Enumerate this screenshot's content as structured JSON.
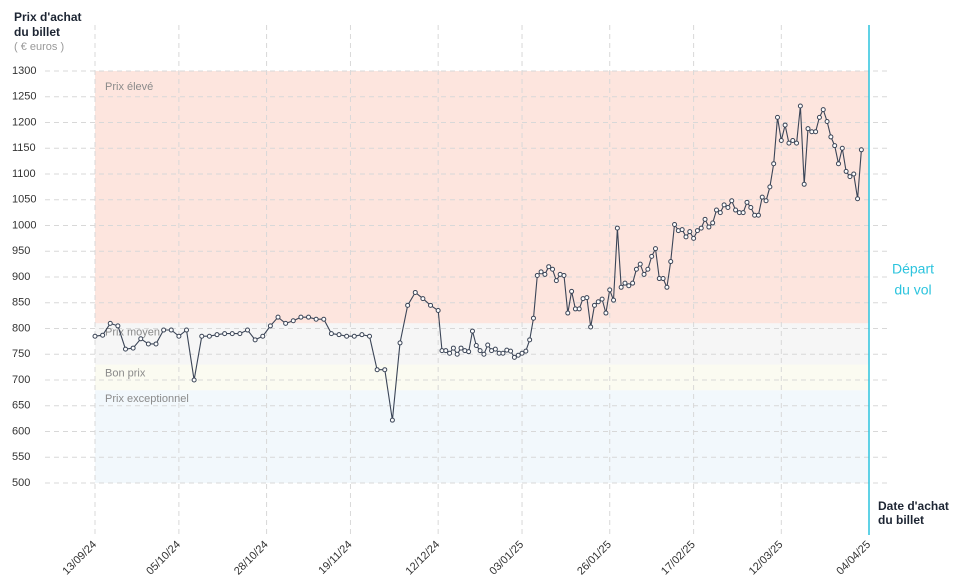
{
  "chart_data": {
    "type": "line",
    "y_axis_title": [
      "Prix d'achat",
      "du billet"
    ],
    "y_axis_unit": "( € euros )",
    "x_axis_title": [
      "Date d'achat",
      "du billet"
    ],
    "departure": "04/04/25",
    "departure_label": [
      "Départ",
      "du vol"
    ],
    "departure_color": "#2cc4de",
    "color": "#3b4557",
    "grid": true,
    "ylim": [
      500,
      1300
    ],
    "yticks": [
      500,
      550,
      600,
      650,
      700,
      750,
      800,
      850,
      900,
      950,
      1000,
      1050,
      1100,
      1150,
      1200,
      1250,
      1300
    ],
    "xlim": [
      "13/09/24",
      "04/04/25"
    ],
    "xticks": [
      "13/09/24",
      "05/10/24",
      "28/10/24",
      "19/11/24",
      "12/12/24",
      "03/01/25",
      "26/01/25",
      "17/02/25",
      "12/03/25",
      "04/04/25"
    ],
    "zones": [
      {
        "label": "Prix élevé",
        "from": 810,
        "to": 1300,
        "color": "#fde5de"
      },
      {
        "label": "Prix moyen",
        "from": 730,
        "to": 810,
        "color": "#f6f6f6"
      },
      {
        "label": "Bon prix",
        "from": 680,
        "to": 730,
        "color": "#fbfbf1"
      },
      {
        "label": "Prix exceptionnel",
        "from": 500,
        "to": 680,
        "color": "#f2f8fc"
      }
    ],
    "x": [
      "13/09/24",
      "15/09/24",
      "17/09/24",
      "19/09/24",
      "21/09/24",
      "23/09/24",
      "25/09/24",
      "27/09/24",
      "29/09/24",
      "01/10/24",
      "03/10/24",
      "05/10/24",
      "07/10/24",
      "09/10/24",
      "11/10/24",
      "13/10/24",
      "15/10/24",
      "17/10/24",
      "19/10/24",
      "21/10/24",
      "23/10/24",
      "25/10/24",
      "27/10/24",
      "29/10/24",
      "31/10/24",
      "02/11/24",
      "04/11/24",
      "06/11/24",
      "08/11/24",
      "10/11/24",
      "12/11/24",
      "14/11/24",
      "16/11/24",
      "18/11/24",
      "20/11/24",
      "22/11/24",
      "24/11/24",
      "26/11/24",
      "28/11/24",
      "30/11/24",
      "02/12/24",
      "04/12/24",
      "06/12/24",
      "08/12/24",
      "10/12/24",
      "12/12/24",
      "13/12/24",
      "14/12/24",
      "15/12/24",
      "16/12/24",
      "17/12/24",
      "18/12/24",
      "19/12/24",
      "20/12/24",
      "21/12/24",
      "22/12/24",
      "23/12/24",
      "24/12/24",
      "25/12/24",
      "26/12/24",
      "27/12/24",
      "28/12/24",
      "29/12/24",
      "30/12/24",
      "31/12/24",
      "01/01/25",
      "02/01/25",
      "03/01/25",
      "04/01/25",
      "05/01/25",
      "06/01/25",
      "07/01/25",
      "08/01/25",
      "09/01/25",
      "10/01/25",
      "11/01/25",
      "12/01/25",
      "13/01/25",
      "14/01/25",
      "15/01/25",
      "16/01/25",
      "17/01/25",
      "18/01/25",
      "19/01/25",
      "20/01/25",
      "21/01/25",
      "22/01/25",
      "23/01/25",
      "24/01/25",
      "25/01/25",
      "26/01/25",
      "27/01/25",
      "28/01/25",
      "29/01/25",
      "30/01/25",
      "31/01/25",
      "01/02/25",
      "02/02/25",
      "03/02/25",
      "04/02/25",
      "05/02/25",
      "06/02/25",
      "07/02/25",
      "08/02/25",
      "09/02/25",
      "10/02/25",
      "11/02/25",
      "12/02/25",
      "13/02/25",
      "14/02/25",
      "15/02/25",
      "16/02/25",
      "17/02/25",
      "18/02/25",
      "19/02/25",
      "20/02/25",
      "21/02/25",
      "22/02/25",
      "23/02/25",
      "24/02/25",
      "25/02/25",
      "26/02/25",
      "27/02/25",
      "28/02/25",
      "01/03/25",
      "02/03/25",
      "03/03/25",
      "04/03/25",
      "05/03/25",
      "06/03/25",
      "07/03/25",
      "08/03/25",
      "09/03/25",
      "10/03/25",
      "11/03/25",
      "12/03/25",
      "13/03/25",
      "14/03/25",
      "15/03/25",
      "16/03/25",
      "17/03/25",
      "18/03/25",
      "19/03/25",
      "20/03/25",
      "21/03/25",
      "22/03/25",
      "23/03/25",
      "24/03/25",
      "25/03/25",
      "26/03/25",
      "27/03/25",
      "28/03/25",
      "29/03/25",
      "30/03/25",
      "31/03/25",
      "01/04/25",
      "02/04/25"
    ],
    "values": [
      785,
      787,
      810,
      805,
      760,
      762,
      780,
      770,
      770,
      797,
      797,
      785,
      797,
      700,
      785,
      785,
      788,
      790,
      790,
      790,
      797,
      778,
      785,
      805,
      822,
      810,
      815,
      822,
      822,
      818,
      818,
      790,
      788,
      785,
      785,
      788,
      785,
      720,
      720,
      622,
      772,
      845,
      870,
      858,
      845,
      835,
      757,
      757,
      752,
      762,
      750,
      762,
      757,
      755,
      795,
      767,
      757,
      750,
      768,
      757,
      760,
      752,
      752,
      758,
      756,
      744,
      748,
      752,
      756,
      778,
      820,
      903,
      910,
      905,
      920,
      915,
      893,
      905,
      903,
      830,
      872,
      838,
      838,
      858,
      860,
      803,
      845,
      852,
      857,
      830,
      875,
      855,
      995,
      880,
      888,
      883,
      888,
      915,
      925,
      905,
      915,
      940,
      955,
      897,
      897,
      880,
      930,
      1002,
      990,
      992,
      978,
      988,
      975,
      990,
      995,
      1012,
      997,
      1005,
      1030,
      1025,
      1040,
      1035,
      1048,
      1030,
      1025,
      1025,
      1045,
      1035,
      1020,
      1020,
      1055,
      1048,
      1075,
      1120,
      1210,
      1165,
      1195,
      1160,
      1165,
      1160,
      1232,
      1080,
      1188,
      1182,
      1182,
      1210,
      1225,
      1202,
      1172,
      1155,
      1120,
      1150,
      1105,
      1095,
      1100,
      1052,
      1147
    ]
  }
}
